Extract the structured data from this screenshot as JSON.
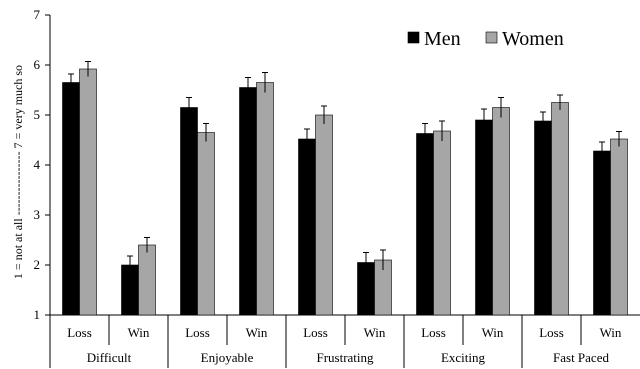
{
  "chart_data": {
    "type": "bar",
    "ylabel": "1 = not at all ---------------- 7 = very much so",
    "ylim": [
      1,
      7
    ],
    "yticks": [
      "1",
      "2",
      "3",
      "4",
      "5",
      "6",
      "7"
    ],
    "groups": [
      {
        "label": "Difficult",
        "subcategories": [
          "Loss",
          "Win"
        ]
      },
      {
        "label": "Enjoyable",
        "subcategories": [
          "Loss",
          "Win"
        ]
      },
      {
        "label": "Frustrating",
        "subcategories": [
          "Loss",
          "Win"
        ]
      },
      {
        "label": "Exciting",
        "subcategories": [
          "Loss",
          "Win"
        ]
      },
      {
        "label": "Fast Paced",
        "subcategories": [
          "Loss",
          "Win"
        ]
      }
    ],
    "series": [
      {
        "name": "Men",
        "color": "#000000",
        "values": [
          5.65,
          2.0,
          5.15,
          5.55,
          4.52,
          2.05,
          4.63,
          4.9,
          4.88,
          4.28
        ],
        "errors": [
          0.17,
          0.18,
          0.2,
          0.2,
          0.2,
          0.2,
          0.2,
          0.22,
          0.18,
          0.18
        ]
      },
      {
        "name": "Women",
        "color": "#a6a6a6",
        "values": [
          5.92,
          2.4,
          4.65,
          5.65,
          5.0,
          2.1,
          4.68,
          5.15,
          5.25,
          4.52
        ],
        "errors": [
          0.15,
          0.15,
          0.18,
          0.2,
          0.18,
          0.2,
          0.2,
          0.2,
          0.15,
          0.15
        ]
      }
    ],
    "legend_position": "top-right",
    "grid": false
  }
}
